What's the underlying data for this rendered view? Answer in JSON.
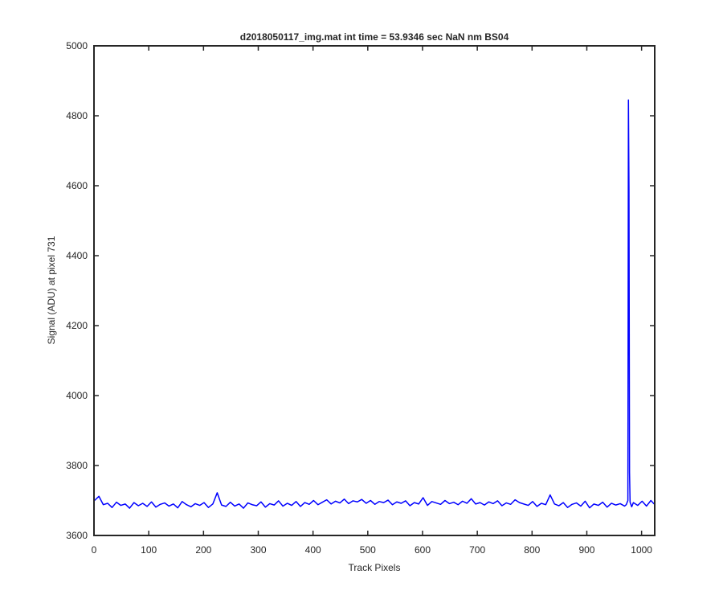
{
  "chart_data": {
    "type": "line",
    "title": "d2018050117_img.mat int time = 53.9346 sec  NaN nm BS04",
    "x_label": "Track Pixels",
    "y_label": "Signal (ADU) at pixel 731",
    "xlim": [
      0,
      1024
    ],
    "ylim": [
      3600,
      5000
    ],
    "xticks": [
      0,
      100,
      200,
      300,
      400,
      500,
      600,
      700,
      800,
      900,
      1000
    ],
    "yticks": [
      3600,
      3800,
      4000,
      4200,
      4400,
      4600,
      4800,
      5000
    ],
    "grid": false,
    "series": [
      {
        "color": "#0000ff",
        "x": [
          1,
          9,
          17,
          25,
          33,
          41,
          49,
          57,
          65,
          73,
          81,
          89,
          97,
          105,
          113,
          121,
          129,
          137,
          145,
          153,
          161,
          169,
          177,
          185,
          193,
          201,
          209,
          217,
          225,
          233,
          241,
          249,
          257,
          265,
          273,
          281,
          289,
          297,
          305,
          313,
          321,
          329,
          337,
          345,
          353,
          361,
          369,
          377,
          385,
          393,
          401,
          409,
          417,
          425,
          433,
          441,
          449,
          457,
          465,
          473,
          481,
          489,
          497,
          505,
          513,
          521,
          529,
          537,
          545,
          553,
          561,
          569,
          577,
          585,
          593,
          601,
          609,
          617,
          625,
          633,
          641,
          649,
          657,
          665,
          673,
          681,
          689,
          697,
          705,
          713,
          721,
          729,
          737,
          745,
          753,
          761,
          769,
          777,
          785,
          793,
          801,
          809,
          817,
          825,
          833,
          841,
          849,
          857,
          865,
          873,
          881,
          889,
          897,
          905,
          913,
          921,
          929,
          937,
          945,
          953,
          961,
          969,
          972,
          975,
          976,
          977,
          978,
          979,
          982,
          985,
          993,
          1001,
          1009,
          1017,
          1023
        ],
        "values": [
          3700,
          3712,
          3688,
          3692,
          3680,
          3695,
          3686,
          3690,
          3678,
          3694,
          3685,
          3692,
          3683,
          3696,
          3681,
          3689,
          3693,
          3684,
          3690,
          3679,
          3697,
          3688,
          3682,
          3691,
          3686,
          3694,
          3680,
          3690,
          3722,
          3687,
          3683,
          3695,
          3684,
          3690,
          3678,
          3693,
          3688,
          3685,
          3696,
          3681,
          3691,
          3687,
          3699,
          3684,
          3692,
          3686,
          3697,
          3683,
          3694,
          3689,
          3700,
          3688,
          3695,
          3702,
          3690,
          3698,
          3693,
          3704,
          3691,
          3699,
          3696,
          3703,
          3692,
          3700,
          3689,
          3697,
          3694,
          3701,
          3688,
          3696,
          3692,
          3699,
          3685,
          3694,
          3690,
          3708,
          3686,
          3697,
          3693,
          3689,
          3700,
          3691,
          3695,
          3688,
          3698,
          3692,
          3705,
          3690,
          3694,
          3687,
          3696,
          3691,
          3699,
          3685,
          3693,
          3689,
          3702,
          3694,
          3690,
          3686,
          3697,
          3683,
          3692,
          3688,
          3716,
          3690,
          3685,
          3694,
          3680,
          3689,
          3693,
          3684,
          3698,
          3679,
          3690,
          3686,
          3695,
          3681,
          3692,
          3687,
          3691,
          3684,
          3688,
          3700,
          4845,
          4590,
          3780,
          3695,
          3682,
          3694,
          3686,
          3698,
          3684,
          3700,
          3690
        ]
      }
    ]
  }
}
